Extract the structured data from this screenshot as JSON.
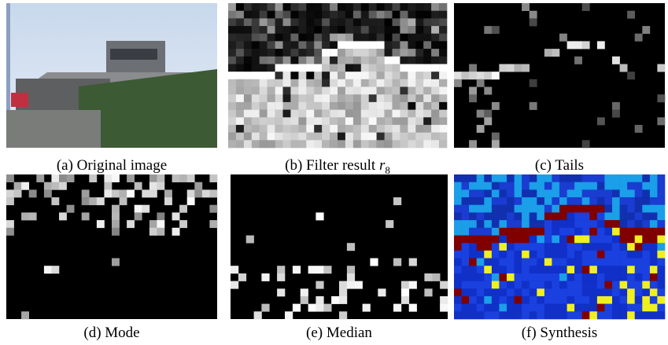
{
  "figure": {
    "panels": [
      {
        "caption": "(a) Original image"
      },
      {
        "caption": "(b) Filter result",
        "math": "r",
        "subscript": "8"
      },
      {
        "caption": "(c) Tails"
      },
      {
        "caption": "(d) Mode"
      },
      {
        "caption": "(e) Median"
      },
      {
        "caption": "(f) Synthesis"
      }
    ]
  }
}
